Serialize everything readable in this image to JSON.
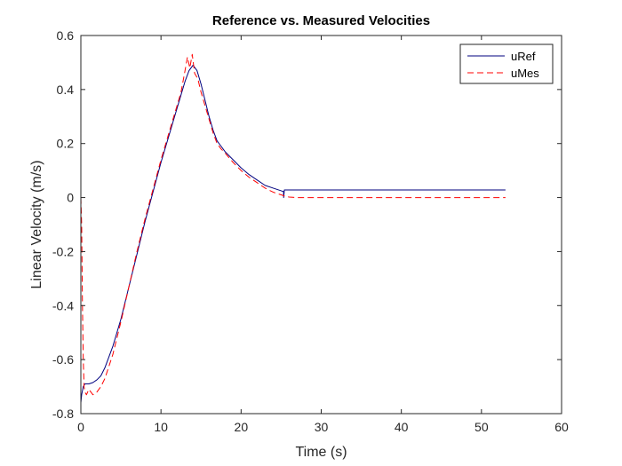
{
  "chart_data": {
    "type": "line",
    "title": "Reference vs. Measured Velocities",
    "xlabel": "Time (s)",
    "ylabel": "Linear Velocity (m/s)",
    "xlim": [
      0,
      60
    ],
    "ylim": [
      -0.8,
      0.6
    ],
    "xticks": [
      0,
      10,
      20,
      30,
      40,
      50,
      60
    ],
    "xtick_labels": [
      "0",
      "10",
      "20",
      "30",
      "40",
      "50",
      "60"
    ],
    "yticks": [
      -0.8,
      -0.6,
      -0.4,
      -0.2,
      0,
      0.2,
      0.4,
      0.6
    ],
    "ytick_labels": [
      "-0.8",
      "-0.6",
      "-0.4",
      "-0.2",
      "0",
      "0.2",
      "0.4",
      "0.6"
    ],
    "grid": false,
    "legend_position": "top-right",
    "series": [
      {
        "name": "uRef",
        "color": "#00007f",
        "style": "solid",
        "x": [
          0,
          0.1,
          0.3,
          0.5,
          1,
          1.5,
          2,
          2.5,
          3,
          4,
          5,
          6,
          7,
          8,
          9,
          10,
          11,
          12,
          12.5,
          13,
          13.5,
          14,
          14.5,
          15,
          15.5,
          16,
          16.5,
          17,
          17.5,
          18,
          19,
          20,
          21,
          22,
          23,
          24,
          25,
          25.3,
          25.31,
          25.4,
          25.5,
          30,
          35,
          40,
          45,
          50,
          53
        ],
        "y": [
          -0.76,
          -0.73,
          -0.7,
          -0.69,
          -0.69,
          -0.685,
          -0.675,
          -0.66,
          -0.63,
          -0.55,
          -0.45,
          -0.33,
          -0.21,
          -0.09,
          0.02,
          0.13,
          0.23,
          0.33,
          0.38,
          0.43,
          0.47,
          0.49,
          0.47,
          0.42,
          0.36,
          0.3,
          0.25,
          0.21,
          0.19,
          0.17,
          0.14,
          0.11,
          0.085,
          0.065,
          0.045,
          0.035,
          0.025,
          0.022,
          0.0,
          0.028,
          0.028,
          0.028,
          0.028,
          0.028,
          0.028,
          0.028,
          0.028
        ]
      },
      {
        "name": "uMes",
        "color": "#ff0000",
        "style": "dashed",
        "x": [
          0,
          0.1,
          0.2,
          0.3,
          0.4,
          0.5,
          0.7,
          1,
          1.5,
          2,
          2.5,
          3,
          4,
          5,
          6,
          7,
          8,
          9,
          10,
          11,
          12,
          12.5,
          13,
          13.3,
          13.6,
          13.9,
          14.2,
          14.6,
          15,
          15.5,
          16,
          16.5,
          17,
          17.5,
          18,
          19,
          20,
          21,
          22,
          23,
          24,
          25,
          25.5,
          26,
          27,
          30,
          35,
          40,
          45,
          50,
          53
        ],
        "y": [
          0.0,
          -0.1,
          -0.4,
          -0.6,
          -0.7,
          -0.72,
          -0.73,
          -0.71,
          -0.73,
          -0.72,
          -0.7,
          -0.67,
          -0.58,
          -0.46,
          -0.33,
          -0.2,
          -0.08,
          0.03,
          0.14,
          0.24,
          0.34,
          0.39,
          0.47,
          0.52,
          0.48,
          0.53,
          0.46,
          0.44,
          0.39,
          0.34,
          0.29,
          0.24,
          0.2,
          0.18,
          0.165,
          0.13,
          0.1,
          0.075,
          0.055,
          0.035,
          0.02,
          0.01,
          0.005,
          0.002,
          0.0,
          0.0,
          0.0,
          0.0,
          0.0,
          0.0,
          0.0
        ]
      }
    ]
  }
}
